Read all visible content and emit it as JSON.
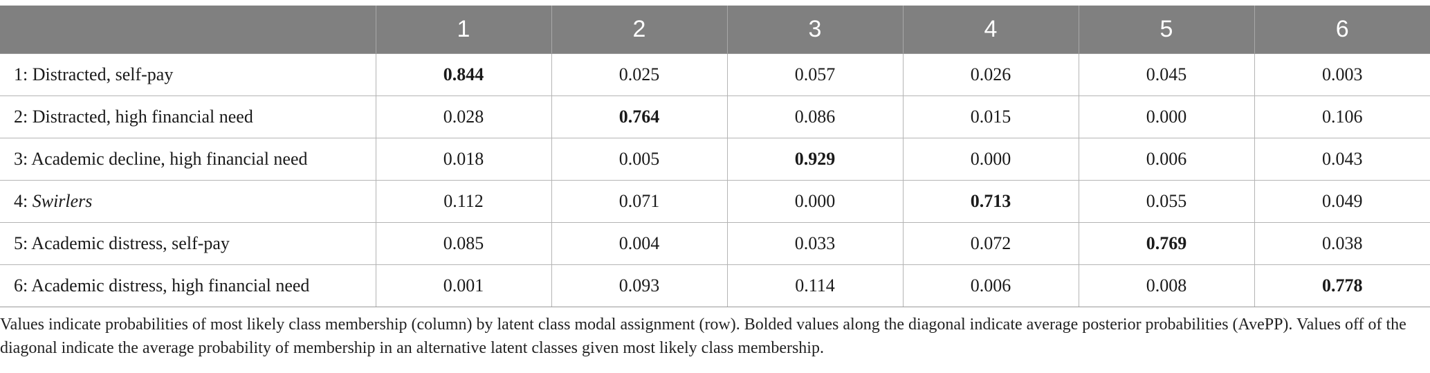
{
  "table": {
    "headers": [
      "",
      "1",
      "2",
      "3",
      "4",
      "5",
      "6"
    ],
    "rows": [
      {
        "label_prefix": "1: ",
        "label_text": "Distracted, self-pay",
        "label_italic": false,
        "values": [
          "0.844",
          "0.025",
          "0.057",
          "0.026",
          "0.045",
          "0.003"
        ]
      },
      {
        "label_prefix": "2: ",
        "label_text": "Distracted, high financial need",
        "label_italic": false,
        "values": [
          "0.028",
          "0.764",
          "0.086",
          "0.015",
          "0.000",
          "0.106"
        ]
      },
      {
        "label_prefix": "3: ",
        "label_text": "Academic decline, high financial need",
        "label_italic": false,
        "values": [
          "0.018",
          "0.005",
          "0.929",
          "0.000",
          "0.006",
          "0.043"
        ]
      },
      {
        "label_prefix": "4: ",
        "label_text": "Swirlers",
        "label_italic": true,
        "values": [
          "0.112",
          "0.071",
          "0.000",
          "0.713",
          "0.055",
          "0.049"
        ]
      },
      {
        "label_prefix": "5: ",
        "label_text": "Academic distress, self-pay",
        "label_italic": false,
        "values": [
          "0.085",
          "0.004",
          "0.033",
          "0.072",
          "0.769",
          "0.038"
        ]
      },
      {
        "label_prefix": "6: ",
        "label_text": "Academic distress, high financial need",
        "label_italic": false,
        "values": [
          "0.001",
          "0.093",
          "0.114",
          "0.006",
          "0.008",
          "0.778"
        ]
      }
    ]
  },
  "footnote": "Values indicate probabilities of most likely class membership (column) by latent class modal assignment (row). Bolded values along the diagonal indicate average posterior probabilities (AvePP). Values off of the diagonal indicate the average probability of membership in an alternative latent classes given most likely class membership.",
  "colors": {
    "header_bg": "#808080",
    "header_text": "#ffffff",
    "grid": "#b4b4b4"
  }
}
